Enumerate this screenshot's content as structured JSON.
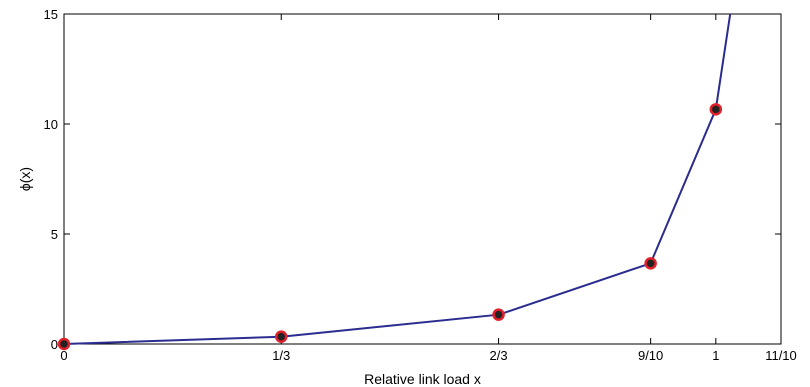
{
  "chart_data": {
    "type": "line",
    "title": "",
    "xlabel": "Relative link load x",
    "ylabel": "ϕ(x)",
    "xlim": [
      0,
      1.1
    ],
    "ylim": [
      0,
      15
    ],
    "x_ticks": [
      {
        "value": 0,
        "label": "0"
      },
      {
        "value": 0.3333,
        "label": "1/3"
      },
      {
        "value": 0.6667,
        "label": "2/3"
      },
      {
        "value": 0.9,
        "label": "9/10"
      },
      {
        "value": 1.0,
        "label": "1"
      },
      {
        "value": 1.1,
        "label": "11/10"
      }
    ],
    "y_ticks": [
      {
        "value": 0,
        "label": "0"
      },
      {
        "value": 5,
        "label": "5"
      },
      {
        "value": 10,
        "label": "10"
      },
      {
        "value": 15,
        "label": "15"
      }
    ],
    "grid": false,
    "legend": "none",
    "series": [
      {
        "x": [
          0,
          0.3333,
          0.6667,
          0.9,
          1.0,
          1.022
        ],
        "y": [
          0,
          0.333,
          1.333,
          3.667,
          10.667,
          15
        ],
        "color": "#2b2c8f",
        "marker_indices": [
          0,
          1,
          2,
          3,
          4
        ],
        "marker_fill": "#222222",
        "marker_edge": "#e0202a"
      }
    ]
  }
}
